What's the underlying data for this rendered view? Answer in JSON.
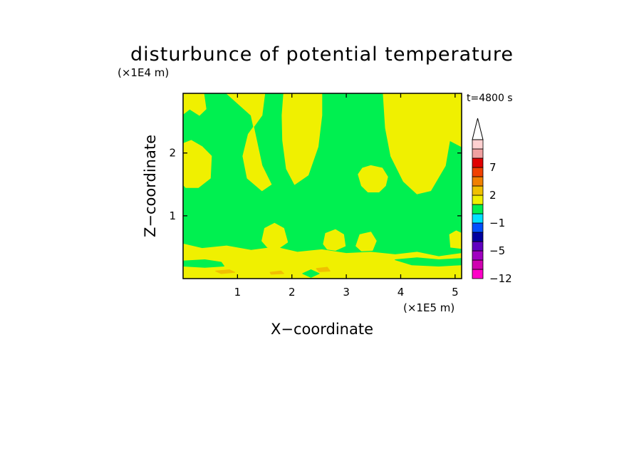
{
  "chart_data": {
    "type": "heatmap",
    "title": "disturbunce of potential temperature",
    "time_label": "t=4800 s",
    "xlabel": "X−coordinate",
    "ylabel": "Z−coordinate",
    "x_unit": "(×1E5 m)",
    "y_unit": "(×1E4 m)",
    "xlim": [
      0,
      5.12
    ],
    "ylim": [
      0,
      2.95
    ],
    "x_ticks": [
      1,
      2,
      3,
      4,
      5
    ],
    "x_tick_labels": [
      "1",
      "2",
      "3",
      "4",
      "5"
    ],
    "y_ticks": [
      1,
      2
    ],
    "y_tick_labels": [
      "1",
      "2"
    ],
    "background_level_color": "#00f050",
    "regions": [
      {
        "name": "yellow-top-left",
        "color": "#f0f000",
        "points": [
          [
            0,
            2.95
          ],
          [
            0.38,
            2.95
          ],
          [
            0.42,
            2.7
          ],
          [
            0.3,
            2.6
          ],
          [
            0.12,
            2.7
          ],
          [
            0,
            2.62
          ]
        ]
      },
      {
        "name": "yellow-left-mid",
        "color": "#f0f000",
        "points": [
          [
            0,
            2.15
          ],
          [
            0.15,
            2.2
          ],
          [
            0.35,
            2.1
          ],
          [
            0.52,
            1.95
          ],
          [
            0.5,
            1.6
          ],
          [
            0.28,
            1.45
          ],
          [
            0.05,
            1.45
          ],
          [
            0,
            1.5
          ]
        ]
      },
      {
        "name": "yellow-lobe-1",
        "color": "#f0f000",
        "points": [
          [
            0.8,
            2.95
          ],
          [
            1.5,
            2.95
          ],
          [
            1.45,
            2.6
          ],
          [
            1.2,
            2.3
          ],
          [
            1.1,
            1.95
          ],
          [
            1.18,
            1.6
          ],
          [
            1.45,
            1.4
          ],
          [
            1.62,
            1.5
          ],
          [
            1.45,
            1.8
          ],
          [
            1.35,
            2.2
          ],
          [
            1.25,
            2.6
          ]
        ]
      },
      {
        "name": "yellow-lobe-2",
        "color": "#f0f000",
        "points": [
          [
            1.85,
            2.95
          ],
          [
            2.55,
            2.95
          ],
          [
            2.55,
            2.6
          ],
          [
            2.48,
            2.1
          ],
          [
            2.3,
            1.65
          ],
          [
            2.05,
            1.5
          ],
          [
            1.9,
            1.75
          ],
          [
            1.83,
            2.2
          ],
          [
            1.82,
            2.6
          ]
        ]
      },
      {
        "name": "yellow-oval",
        "color": "#f0f000",
        "points": [
          [
            3.22,
            1.66
          ],
          [
            3.28,
            1.48
          ],
          [
            3.4,
            1.38
          ],
          [
            3.6,
            1.38
          ],
          [
            3.72,
            1.48
          ],
          [
            3.76,
            1.62
          ],
          [
            3.66,
            1.76
          ],
          [
            3.45,
            1.8
          ],
          [
            3.3,
            1.76
          ]
        ]
      },
      {
        "name": "yellow-right-bowl",
        "color": "#f0f000",
        "points": [
          [
            3.68,
            2.95
          ],
          [
            5.12,
            2.95
          ],
          [
            5.12,
            2.1
          ],
          [
            4.9,
            2.2
          ],
          [
            4.82,
            1.8
          ],
          [
            4.55,
            1.4
          ],
          [
            4.3,
            1.35
          ],
          [
            4.05,
            1.55
          ],
          [
            3.82,
            1.95
          ],
          [
            3.72,
            2.4
          ]
        ]
      },
      {
        "name": "yellow-bubble-1",
        "color": "#f0f000",
        "points": [
          [
            1.45,
            0.6
          ],
          [
            1.5,
            0.8
          ],
          [
            1.68,
            0.88
          ],
          [
            1.85,
            0.8
          ],
          [
            1.92,
            0.58
          ],
          [
            1.75,
            0.48
          ],
          [
            1.55,
            0.5
          ]
        ]
      },
      {
        "name": "yellow-bubble-2",
        "color": "#f0f000",
        "points": [
          [
            2.58,
            0.55
          ],
          [
            2.62,
            0.72
          ],
          [
            2.8,
            0.78
          ],
          [
            2.95,
            0.7
          ],
          [
            2.98,
            0.52
          ],
          [
            2.8,
            0.45
          ],
          [
            2.65,
            0.47
          ]
        ]
      },
      {
        "name": "yellow-bubble-3",
        "color": "#f0f000",
        "points": [
          [
            3.18,
            0.52
          ],
          [
            3.25,
            0.7
          ],
          [
            3.45,
            0.74
          ],
          [
            3.55,
            0.6
          ],
          [
            3.48,
            0.45
          ],
          [
            3.28,
            0.44
          ]
        ]
      },
      {
        "name": "yellow-bubble-4",
        "color": "#f0f000",
        "points": [
          [
            4.9,
            0.7
          ],
          [
            5.02,
            0.76
          ],
          [
            5.12,
            0.72
          ],
          [
            5.12,
            0.48
          ],
          [
            4.92,
            0.5
          ]
        ]
      },
      {
        "name": "yellow-bottom-band",
        "color": "#f0f000",
        "points": [
          [
            0,
            0.55
          ],
          [
            0.35,
            0.48
          ],
          [
            0.8,
            0.52
          ],
          [
            1.25,
            0.45
          ],
          [
            1.7,
            0.5
          ],
          [
            2.1,
            0.42
          ],
          [
            2.55,
            0.46
          ],
          [
            3.0,
            0.4
          ],
          [
            3.45,
            0.42
          ],
          [
            3.9,
            0.38
          ],
          [
            4.3,
            0.42
          ],
          [
            4.7,
            0.35
          ],
          [
            5.12,
            0.4
          ],
          [
            5.12,
            0.0
          ],
          [
            0,
            0.0
          ]
        ]
      },
      {
        "name": "green-band-low-left",
        "color": "#00f050",
        "points": [
          [
            0,
            0.28
          ],
          [
            0.4,
            0.3
          ],
          [
            0.7,
            0.26
          ],
          [
            0.75,
            0.2
          ],
          [
            0.4,
            0.18
          ],
          [
            0,
            0.2
          ]
        ]
      },
      {
        "name": "green-band-low-right",
        "color": "#00f050",
        "points": [
          [
            3.9,
            0.3
          ],
          [
            4.3,
            0.33
          ],
          [
            4.7,
            0.3
          ],
          [
            5.12,
            0.32
          ],
          [
            5.12,
            0.22
          ],
          [
            4.7,
            0.2
          ],
          [
            4.2,
            0.22
          ]
        ]
      },
      {
        "name": "green-spots-bottom",
        "color": "#00f050",
        "points": [
          [
            2.2,
            0.08
          ],
          [
            2.35,
            0.14
          ],
          [
            2.5,
            0.08
          ],
          [
            2.35,
            0.02
          ]
        ]
      },
      {
        "name": "orange-streak-1",
        "color": "#f0c000",
        "points": [
          [
            0.6,
            0.12
          ],
          [
            0.85,
            0.14
          ],
          [
            0.95,
            0.1
          ],
          [
            0.7,
            0.08
          ]
        ]
      },
      {
        "name": "orange-streak-2",
        "color": "#f0c000",
        "points": [
          [
            2.45,
            0.16
          ],
          [
            2.65,
            0.18
          ],
          [
            2.7,
            0.12
          ],
          [
            2.5,
            0.11
          ]
        ]
      },
      {
        "name": "orange-streak-3",
        "color": "#f0c000",
        "points": [
          [
            1.6,
            0.1
          ],
          [
            1.8,
            0.12
          ],
          [
            1.85,
            0.08
          ],
          [
            1.62,
            0.07
          ]
        ]
      }
    ],
    "colorbar": {
      "colors_bottom_to_top": [
        "#ff00c8",
        "#d000b0",
        "#a000c0",
        "#6000c0",
        "#0000a0",
        "#0050ff",
        "#00e0ff",
        "#00f050",
        "#f0f000",
        "#f0c000",
        "#f08000",
        "#f04000",
        "#e00000",
        "#f0a0a0",
        "#ffd0d0"
      ],
      "labels": [
        {
          "text": "−12",
          "index": 0
        },
        {
          "text": "−5",
          "index": 3
        },
        {
          "text": "−1",
          "index": 6
        },
        {
          "text": "2",
          "index": 9
        },
        {
          "text": "7",
          "index": 12
        }
      ]
    }
  }
}
